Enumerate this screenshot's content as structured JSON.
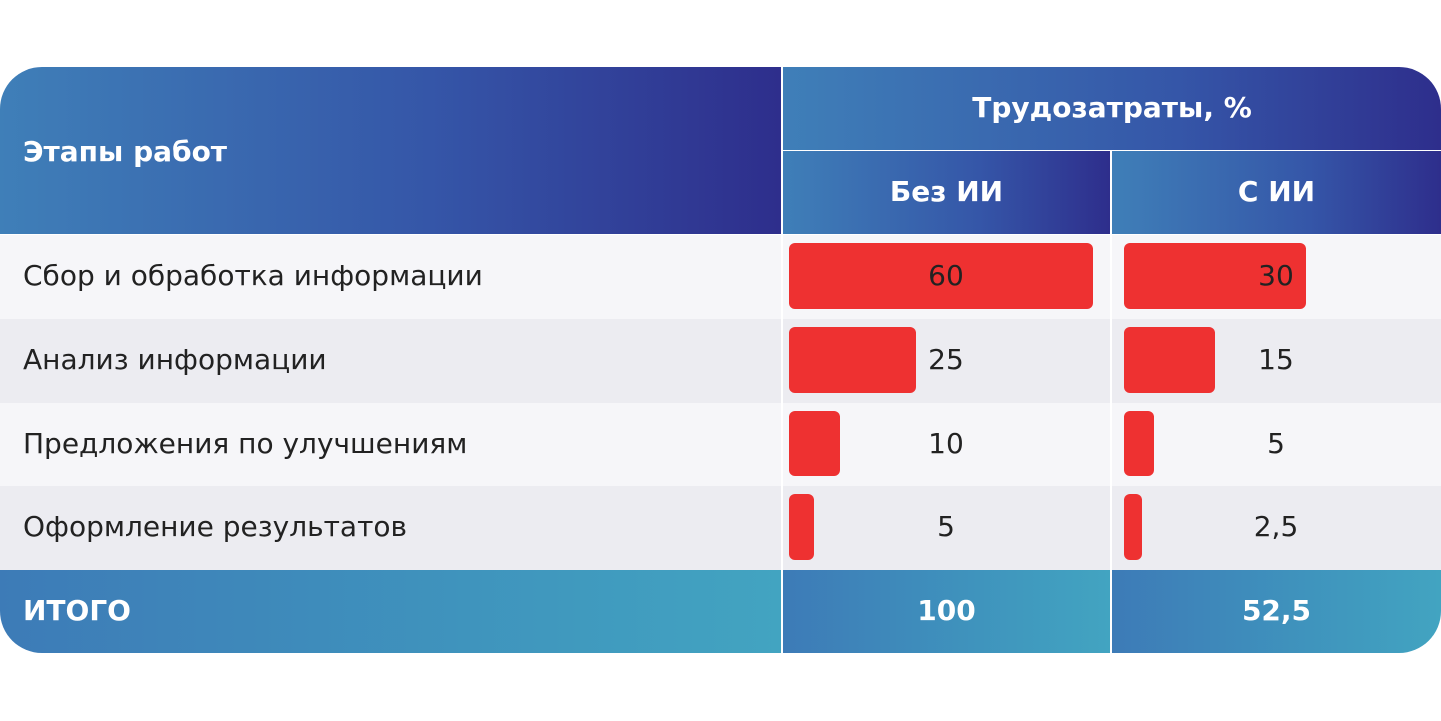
{
  "header": {
    "stages_label": "Этапы работ",
    "labor_label": "Трудозатраты, %",
    "without_ai_label": "Без ИИ",
    "with_ai_label": "С ИИ"
  },
  "rows": [
    {
      "label": "Сбор и обработка информации",
      "without_ai": "60",
      "with_ai": "30"
    },
    {
      "label": "Анализ информации",
      "without_ai": "25",
      "with_ai": "15"
    },
    {
      "label": "Предложения по улучшениям",
      "without_ai": "10",
      "with_ai": "5"
    },
    {
      "label": "Оформление результатов",
      "without_ai": "5",
      "with_ai": "2,5"
    }
  ],
  "total": {
    "label": "ИТОГО",
    "without_ai": "100",
    "with_ai": "52,5"
  },
  "colors": {
    "bar": "#ee3131",
    "header_gradient": [
      "#3f7fb8",
      "#2e2e8c"
    ],
    "total_gradient": [
      "#3d7bb7",
      "#42a4c1"
    ],
    "row_odd": "#f6f6f9",
    "row_even": "#ececf1"
  },
  "chart_data": {
    "type": "table",
    "columns": [
      "Этапы работ",
      "Без ИИ",
      "С ИИ"
    ],
    "categories": [
      "Сбор и обработка информации",
      "Анализ информации",
      "Предложения по улучшениям",
      "Оформление результатов"
    ],
    "series": [
      {
        "name": "Без ИИ",
        "values": [
          60,
          25,
          10,
          5
        ]
      },
      {
        "name": "С ИИ",
        "values": [
          30,
          15,
          5,
          2.5
        ]
      }
    ],
    "totals": [
      100,
      52.5
    ]
  }
}
